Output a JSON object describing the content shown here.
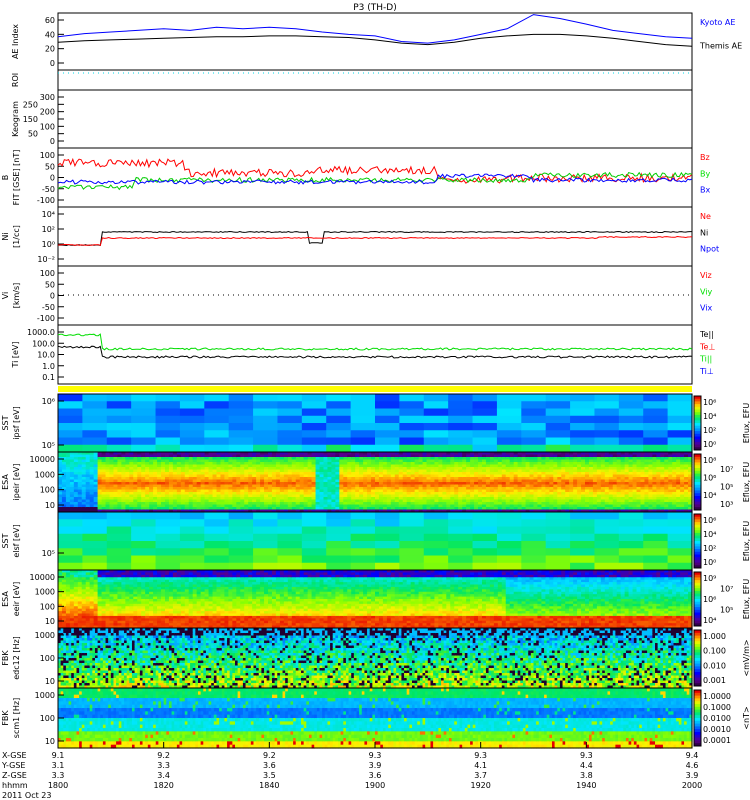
{
  "title": "P3 (TH-D)",
  "date": "2011 Oct 23",
  "colors": {
    "blue": "#0000ff",
    "red": "#ff0000",
    "green": "#00e000",
    "black": "#000000",
    "cyan": "#00d8e8",
    "yellow": "#ffff00"
  },
  "panels": [
    {
      "id": "ae",
      "label": "AE Index",
      "ticks": [
        "60",
        "40",
        "20",
        "0"
      ],
      "legend": [
        {
          "text": "Kyoto AE",
          "color": "#0000ff"
        },
        {
          "text": "Themis AE",
          "color": "#000000"
        }
      ]
    },
    {
      "id": "roi",
      "label": "ROI",
      "ticks": [],
      "legend": []
    },
    {
      "id": "keo",
      "label": "Keogram",
      "ticks": [
        "300",
        "250",
        "200",
        "150",
        "100",
        "50",
        "0"
      ],
      "legend": []
    },
    {
      "id": "b",
      "label": "B FIT [GSE] [nT]",
      "ticks": [
        "100",
        "50",
        "0",
        "-50",
        "-100"
      ],
      "legend": [
        {
          "text": "Bz",
          "color": "#ff0000"
        },
        {
          "text": "By",
          "color": "#00e000"
        },
        {
          "text": "Bx",
          "color": "#0000ff"
        }
      ]
    },
    {
      "id": "ni",
      "label": "Ni [1/cc]",
      "ticks": [
        "10⁴",
        "10²",
        "10⁰",
        "10⁻²"
      ],
      "legend": [
        {
          "text": "Ne",
          "color": "#ff0000"
        },
        {
          "text": "Ni",
          "color": "#000000"
        },
        {
          "text": "Npot",
          "color": "#0000ff"
        }
      ]
    },
    {
      "id": "vi",
      "label": "Vi [km/s]",
      "ticks": [
        "100",
        "50",
        "0",
        "-50",
        "-100"
      ],
      "legend": [
        {
          "text": "Viz",
          "color": "#ff0000"
        },
        {
          "text": "Viy",
          "color": "#00e000"
        },
        {
          "text": "Vix",
          "color": "#0000ff"
        }
      ]
    },
    {
      "id": "ti",
      "label": "Ti [eV]",
      "ticks": [
        "1000.0",
        "100.0",
        "10.0",
        "1.0",
        "0.1"
      ],
      "legend": [
        {
          "text": "Te||",
          "color": "#000000"
        },
        {
          "text": "Te⊥",
          "color": "#ff0000"
        },
        {
          "text": "Ti||",
          "color": "#00e000"
        },
        {
          "text": "Ti⊥",
          "color": "#0000ff"
        }
      ]
    },
    {
      "id": "sst_i",
      "label": "SST ipsf [eV]",
      "ticks": [
        "10⁶",
        "10⁵"
      ],
      "cbar": [
        "10⁶",
        "10⁴",
        "10²",
        "10⁰"
      ],
      "cbar_title": "Eflux, EFU"
    },
    {
      "id": "esa_i",
      "label": "ESA ipeir [eV]",
      "ticks": [
        "10000",
        "1000",
        "100",
        "10"
      ],
      "cbar": [
        "10⁸",
        "10⁷",
        "10⁶",
        "10⁵",
        "10⁴",
        "10³"
      ],
      "cbar_title": "Eflux, EFU"
    },
    {
      "id": "sst_e",
      "label": "SST elsf [eV]",
      "ticks": [
        "10⁵"
      ],
      "cbar": [
        "10⁶",
        "10⁴",
        "10²",
        "10⁰"
      ],
      "cbar_title": "Eflux, EFU"
    },
    {
      "id": "esa_e",
      "label": "ESA eeir [eV]",
      "ticks": [
        "10000",
        "1000",
        "100",
        "10"
      ],
      "cbar": [
        "10⁹",
        "10⁷",
        "10⁶",
        "10⁵",
        "10⁴"
      ],
      "cbar_title": "Eflux, EFU"
    },
    {
      "id": "fbk1",
      "label": "FBK edc12 [Hz]",
      "ticks": [
        "1000",
        "100",
        "10"
      ],
      "cbar": [
        "1.000",
        "0.100",
        "0.010",
        "0.001"
      ],
      "cbar_title": "<mV/m>"
    },
    {
      "id": "fbk2",
      "label": "FBK scm1 [Hz]",
      "ticks": [
        "1000",
        "100",
        "10"
      ],
      "cbar": [
        "1.0000",
        "0.1000",
        "0.0100",
        "0.0010",
        "0.0001"
      ],
      "cbar_title": "<nT>"
    }
  ],
  "xaxis": {
    "row_labels": [
      "X-GSE",
      "Y-GSE",
      "Z-GSE",
      "hhmm"
    ],
    "columns": [
      {
        "x": "9.1",
        "y": "3.1",
        "z": "3.3",
        "t": "1800"
      },
      {
        "x": "9.2",
        "y": "3.3",
        "z": "3.4",
        "t": "1820"
      },
      {
        "x": "9.2",
        "y": "3.6",
        "z": "3.5",
        "t": "1840"
      },
      {
        "x": "9.3",
        "y": "3.9",
        "z": "3.6",
        "t": "1900"
      },
      {
        "x": "9.3",
        "y": "4.1",
        "z": "3.7",
        "t": "1920"
      },
      {
        "x": "9.3",
        "y": "4.4",
        "z": "3.8",
        "t": "1940"
      },
      {
        "x": "9.4",
        "y": "4.6",
        "z": "3.9",
        "t": "2000"
      }
    ]
  },
  "chart_data": {
    "type": "line",
    "title": "P3 (TH-D)",
    "xlabel": "hhmm",
    "xlim": [
      0,
      120
    ],
    "ae": {
      "ylim": [
        -5,
        62
      ],
      "x_minutes": [
        0,
        5,
        10,
        15,
        20,
        25,
        30,
        35,
        40,
        45,
        50,
        55,
        60,
        65,
        70,
        75,
        80,
        85,
        90,
        95,
        100,
        105,
        110,
        115,
        120
      ],
      "series": [
        {
          "name": "Kyoto AE",
          "values": [
            32,
            36,
            38,
            40,
            42,
            40,
            44,
            42,
            44,
            42,
            38,
            35,
            33,
            26,
            24,
            28,
            35,
            42,
            60,
            55,
            48,
            40,
            36,
            32,
            30
          ]
        },
        {
          "name": "Themis AE",
          "values": [
            25,
            27,
            28,
            29,
            30,
            31,
            32,
            32,
            33,
            33,
            32,
            31,
            28,
            24,
            22,
            25,
            30,
            33,
            35,
            35,
            33,
            30,
            26,
            22,
            20
          ]
        }
      ]
    }
  }
}
